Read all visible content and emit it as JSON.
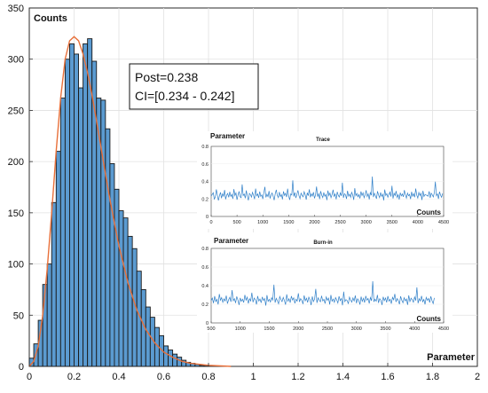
{
  "chart_data": [
    {
      "type": "bar",
      "panel": "histogram",
      "ylabel": "Counts",
      "xlabel": "Parameter",
      "xlim": [
        0,
        2
      ],
      "ylim": [
        0,
        350
      ],
      "xticks": [
        "0",
        "0.2",
        "0.4",
        "0.6",
        "0.8",
        "1",
        "1.2",
        "1.4",
        "1.6",
        "1.8",
        "2"
      ],
      "yticks": [
        "0",
        "50",
        "100",
        "150",
        "200",
        "250",
        "300",
        "350"
      ],
      "bin_width": 0.02,
      "bin_start": 0.0,
      "values": [
        8,
        22,
        45,
        80,
        100,
        160,
        210,
        262,
        300,
        315,
        305,
        272,
        315,
        320,
        298,
        262,
        260,
        232,
        198,
        173,
        152,
        145,
        127,
        115,
        93,
        75,
        58,
        48,
        38,
        30,
        20,
        16,
        12,
        9,
        6,
        4,
        3,
        2,
        1,
        1
      ],
      "fit_curve": {
        "x": [
          0.0,
          0.02,
          0.04,
          0.06,
          0.08,
          0.1,
          0.12,
          0.14,
          0.16,
          0.18,
          0.2,
          0.22,
          0.24,
          0.26,
          0.28,
          0.3,
          0.32,
          0.34,
          0.36,
          0.38,
          0.4,
          0.44,
          0.48,
          0.52,
          0.56,
          0.6,
          0.64,
          0.68,
          0.72,
          0.76,
          0.8,
          0.9
        ],
        "y": [
          0,
          5,
          20,
          50,
          95,
          150,
          210,
          262,
          300,
          318,
          322,
          318,
          305,
          287,
          265,
          240,
          214,
          188,
          163,
          140,
          118,
          82,
          55,
          36,
          23,
          14,
          9,
          5,
          3,
          2,
          1,
          0
        ]
      },
      "annotation": {
        "lines": [
          "Post=0.238",
          "CI=[0.234 - 0.242]"
        ]
      },
      "colors": {
        "bar_fill": "#5b9bd1",
        "bar_edge": "#1a1a1a",
        "fit": "#e8703a"
      },
      "grid": true
    },
    {
      "type": "line",
      "panel": "trace",
      "title": "Trace",
      "ylabel": "Parameter",
      "xlabel": "Counts",
      "xlim": [
        0,
        4500
      ],
      "ylim": [
        0,
        0.8
      ],
      "xticks": [
        "0",
        "500",
        "1000",
        "1500",
        "2000",
        "2500",
        "3000",
        "3500",
        "4000",
        "4500"
      ],
      "yticks": [
        "0",
        "0.2",
        "0.4",
        "0.6",
        "0.8"
      ],
      "x_step": 20,
      "values": [
        0.234,
        0.251,
        0.271,
        0.198,
        0.221,
        0.309,
        0.244,
        0.183,
        0.236,
        0.275,
        0.208,
        0.259,
        0.231,
        0.302,
        0.196,
        0.244,
        0.262,
        0.218,
        0.281,
        0.229,
        0.252,
        0.201,
        0.312,
        0.238,
        0.269,
        0.191,
        0.243,
        0.287,
        0.225,
        0.214,
        0.365,
        0.239,
        0.256,
        0.208,
        0.297,
        0.231,
        0.184,
        0.263,
        0.249,
        0.221,
        0.276,
        0.242,
        0.198,
        0.318,
        0.235,
        0.257,
        0.212,
        0.284,
        0.229,
        0.246,
        0.199,
        0.271,
        0.338,
        0.218,
        0.253,
        0.226,
        0.291,
        0.205,
        0.247,
        0.268,
        0.232,
        0.186,
        0.259,
        0.304,
        0.241,
        0.215,
        0.279,
        0.227,
        0.25,
        0.195,
        0.286,
        0.239,
        0.264,
        0.221,
        0.317,
        0.234,
        0.189,
        0.257,
        0.246,
        0.412,
        0.228,
        0.273,
        0.211,
        0.255,
        0.298,
        0.236,
        0.203,
        0.266,
        0.24,
        0.224,
        0.283,
        0.248,
        0.192,
        0.271,
        0.237,
        0.31,
        0.219,
        0.258,
        0.233,
        0.277,
        0.207,
        0.245,
        0.341,
        0.226,
        0.261,
        0.198,
        0.289,
        0.243,
        0.216,
        0.274,
        0.231,
        0.252,
        0.187,
        0.296,
        0.238,
        0.267,
        0.214,
        0.249,
        0.305,
        0.229,
        0.256,
        0.195,
        0.281,
        0.241,
        0.222,
        0.269,
        0.235,
        0.386,
        0.212,
        0.26,
        0.247,
        0.201,
        0.293,
        0.232,
        0.254,
        0.218,
        0.276,
        0.244,
        0.189,
        0.323,
        0.237,
        0.263,
        0.224,
        0.251,
        0.206,
        0.285,
        0.239,
        0.27,
        0.213,
        0.248,
        0.299,
        0.227,
        0.258,
        0.194,
        0.272,
        0.242,
        0.455,
        0.221,
        0.266,
        0.235,
        0.202,
        0.288,
        0.246,
        0.215,
        0.274,
        0.23,
        0.253,
        0.184,
        0.307,
        0.24,
        0.261,
        0.219,
        0.25,
        0.278,
        0.227,
        0.35,
        0.205,
        0.264,
        0.238,
        0.29,
        0.216,
        0.248,
        0.193,
        0.271,
        0.234,
        0.257,
        0.224,
        0.301,
        0.245,
        0.209,
        0.267,
        0.236,
        0.252,
        0.198,
        0.282,
        0.231,
        0.26,
        0.22,
        0.318,
        0.243,
        0.21,
        0.274,
        0.239,
        0.265,
        0.188,
        0.293,
        0.228,
        0.25,
        0.245,
        0.239,
        0.231,
        0.287,
        0.212,
        0.265,
        0.246,
        0.223,
        0.271,
        0.397,
        0.236,
        0.258,
        0.201,
        0.282,
        0.244,
        0.219,
        0.262
      ]
    },
    {
      "type": "line",
      "panel": "burn-in",
      "title": "Burn-in",
      "ylabel": "Parameter",
      "xlabel": "Counts",
      "xlim": [
        500,
        4500
      ],
      "ylim": [
        0,
        0.8
      ],
      "xticks": [
        "500",
        "1000",
        "1500",
        "2000",
        "2500",
        "3000",
        "3500",
        "4000",
        "4500"
      ],
      "yticks": [
        "0",
        "0.2",
        "0.4",
        "0.6",
        "0.8"
      ],
      "x_start": 500,
      "x_step": 20,
      "values": [
        0.241,
        0.266,
        0.213,
        0.287,
        0.229,
        0.254,
        0.198,
        0.31,
        0.243,
        0.272,
        0.221,
        0.258,
        0.236,
        0.293,
        0.207,
        0.249,
        0.275,
        0.226,
        0.352,
        0.238,
        0.261,
        0.214,
        0.284,
        0.247,
        0.193,
        0.268,
        0.232,
        0.255,
        0.219,
        0.301,
        0.244,
        0.277,
        0.209,
        0.259,
        0.236,
        0.325,
        0.222,
        0.267,
        0.248,
        0.199,
        0.289,
        0.235,
        0.256,
        0.216,
        0.279,
        0.24,
        0.262,
        0.186,
        0.298,
        0.231,
        0.253,
        0.224,
        0.27,
        0.245,
        0.41,
        0.218,
        0.264,
        0.237,
        0.205,
        0.283,
        0.25,
        0.229,
        0.274,
        0.241,
        0.196,
        0.307,
        0.233,
        0.259,
        0.217,
        0.288,
        0.246,
        0.269,
        0.21,
        0.255,
        0.234,
        0.318,
        0.226,
        0.261,
        0.242,
        0.203,
        0.295,
        0.238,
        0.265,
        0.22,
        0.276,
        0.249,
        0.191,
        0.284,
        0.23,
        0.258,
        0.365,
        0.215,
        0.27,
        0.244,
        0.227,
        0.291,
        0.236,
        0.253,
        0.208,
        0.279,
        0.243,
        0.266,
        0.198,
        0.3,
        0.233,
        0.256,
        0.221,
        0.272,
        0.247,
        0.214,
        0.286,
        0.239,
        0.262,
        0.189,
        0.335,
        0.228,
        0.25,
        0.241,
        0.205,
        0.277,
        0.246,
        0.223,
        0.268,
        0.235,
        0.294,
        0.212,
        0.259,
        0.24,
        0.197,
        0.282,
        0.231,
        0.264,
        0.218,
        0.29,
        0.244,
        0.263,
        0.209,
        0.273,
        0.237,
        0.448,
        0.226,
        0.255,
        0.232,
        0.301,
        0.215,
        0.26,
        0.245,
        0.192,
        0.28,
        0.239,
        0.267,
        0.22,
        0.288,
        0.234,
        0.254,
        0.207,
        0.275,
        0.249,
        0.311,
        0.225,
        0.262,
        0.238,
        0.201,
        0.286,
        0.243,
        0.216,
        0.27,
        0.236,
        0.257,
        0.194,
        0.296,
        0.229,
        0.265,
        0.248,
        0.222,
        0.279,
        0.24,
        0.382,
        0.211,
        0.261,
        0.235,
        0.29,
        0.227,
        0.252,
        0.199,
        0.274,
        0.242,
        0.263,
        0.219,
        0.285,
        0.238,
        0.208,
        0.268
      ]
    }
  ]
}
